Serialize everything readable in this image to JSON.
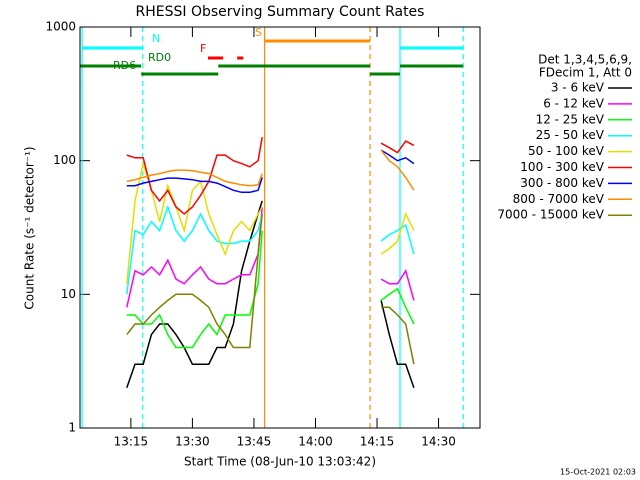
{
  "chart_data": {
    "type": "line",
    "title": "RHESSI Observing Summary Count Rates",
    "xlabel": "Start Time (08-Jun-10 13:03:42)",
    "ylabel": "Count Rate (s⁻¹ detector⁻¹)",
    "footer": "15-Oct-2021 02:03",
    "legend_header": [
      "Det 1,3,4,5,6,9,",
      "FDecim 1, Att 0"
    ],
    "log_y": true,
    "ylim": [
      1,
      1000
    ],
    "yticks": [
      1,
      10,
      100,
      1000
    ],
    "xlim": [
      2.6,
      100.1
    ],
    "xticks": [
      {
        "value": 15,
        "label": "13:15"
      },
      {
        "value": 30,
        "label": "13:30"
      },
      {
        "value": 45,
        "label": "13:45"
      },
      {
        "value": 60,
        "label": "14:00"
      },
      {
        "value": 75,
        "label": "14:15"
      },
      {
        "value": 90,
        "label": "14:30"
      }
    ],
    "x": [
      14,
      16,
      18,
      20,
      22,
      24,
      26,
      28,
      30,
      32,
      34,
      36,
      38,
      40,
      42,
      44,
      46,
      47,
      60,
      76,
      78,
      80,
      82,
      84
    ],
    "series": [
      {
        "name": "3 - 6 keV",
        "color": "#000000",
        "values": [
          2,
          3,
          3,
          5,
          6,
          6,
          5,
          4,
          3,
          3,
          3,
          4,
          4,
          6,
          15,
          25,
          40,
          50,
          null,
          9,
          5,
          3,
          3,
          2
        ]
      },
      {
        "name": "6 - 12 keV",
        "color": "#ff00ff",
        "values": [
          8,
          15,
          14,
          16,
          14,
          18,
          13,
          12,
          14,
          16,
          13,
          12,
          12,
          13,
          14,
          14,
          20,
          45,
          null,
          13,
          12,
          12,
          15,
          9
        ]
      },
      {
        "name": "12 - 25 keV",
        "color": "#00ff00",
        "values": [
          7,
          7,
          6,
          6,
          7,
          5,
          4,
          4,
          4,
          5,
          6,
          5,
          7,
          7,
          7,
          7,
          12,
          30,
          null,
          9,
          10,
          11,
          8,
          6
        ]
      },
      {
        "name": "25 - 50 keV",
        "color": "#00ffff",
        "values": [
          10,
          30,
          28,
          35,
          30,
          45,
          30,
          25,
          30,
          40,
          30,
          25,
          24,
          24,
          25,
          25,
          30,
          40,
          null,
          25,
          28,
          30,
          33,
          20
        ]
      },
      {
        "name": "50 - 100 keV",
        "color": "#e0e000",
        "values": [
          12,
          50,
          95,
          60,
          35,
          65,
          45,
          30,
          60,
          70,
          40,
          28,
          20,
          30,
          35,
          30,
          40,
          45,
          null,
          20,
          22,
          25,
          40,
          30
        ]
      },
      {
        "name": "100 - 300 keV",
        "color": "#ff0000",
        "values": [
          110,
          105,
          105,
          60,
          50,
          60,
          45,
          40,
          45,
          55,
          70,
          110,
          110,
          100,
          95,
          90,
          100,
          150,
          null,
          135,
          125,
          115,
          140,
          130
        ]
      },
      {
        "name": "300 - 800 keV",
        "color": "#0000ff",
        "values": [
          65,
          65,
          68,
          70,
          72,
          74,
          74,
          73,
          72,
          70,
          70,
          68,
          64,
          60,
          58,
          58,
          60,
          75,
          null,
          120,
          110,
          100,
          105,
          95
        ]
      },
      {
        "name": "800 - 7000 keV",
        "color": "#ff8c00",
        "values": [
          70,
          72,
          75,
          78,
          80,
          83,
          85,
          85,
          84,
          82,
          80,
          75,
          70,
          68,
          66,
          65,
          66,
          80,
          null,
          120,
          100,
          90,
          75,
          60
        ]
      },
      {
        "name": "7000 - 15000 keV",
        "color": "#808000",
        "values": [
          5,
          6,
          6,
          7,
          8,
          9,
          10,
          10,
          10,
          9,
          8,
          6,
          5,
          4,
          4,
          4,
          20,
          40,
          null,
          8,
          8,
          7,
          6,
          3
        ]
      }
    ],
    "flags": [
      {
        "label": "N",
        "color": "#00ffff",
        "segments": [
          [
            3.1,
            17.9
          ],
          [
            80.6,
            96
          ]
        ]
      },
      {
        "label": "RD0",
        "color": "#008000",
        "segments": [
          [
            2.6,
            17.5
          ],
          [
            36.3,
            73.3
          ],
          [
            80.6,
            96
          ]
        ]
      },
      {
        "label": "RD6",
        "color": "#008000",
        "segments": [
          [
            17.5,
            36.3
          ],
          [
            73.3,
            80.6
          ]
        ]
      },
      {
        "label": "F",
        "color": "#ff0000",
        "segments": [
          [
            33.8,
            37.5
          ],
          [
            40.9,
            42.4
          ]
        ]
      },
      {
        "label": "S",
        "color": "#ff8c00",
        "segments": [
          [
            47.6,
            73.3
          ]
        ]
      }
    ],
    "vlines": [
      {
        "x": 3.1,
        "color": "#00ffff",
        "dashed": false
      },
      {
        "x": 17.9,
        "color": "#00ffff",
        "dashed": true
      },
      {
        "x": 47.6,
        "color": "#ff8c00",
        "dashed": false
      },
      {
        "x": 73.3,
        "color": "#ff8c00",
        "dashed": true
      },
      {
        "x": 80.6,
        "color": "#00ffff",
        "dashed": false
      },
      {
        "x": 96,
        "color": "#00ffff",
        "dashed": true
      }
    ]
  }
}
